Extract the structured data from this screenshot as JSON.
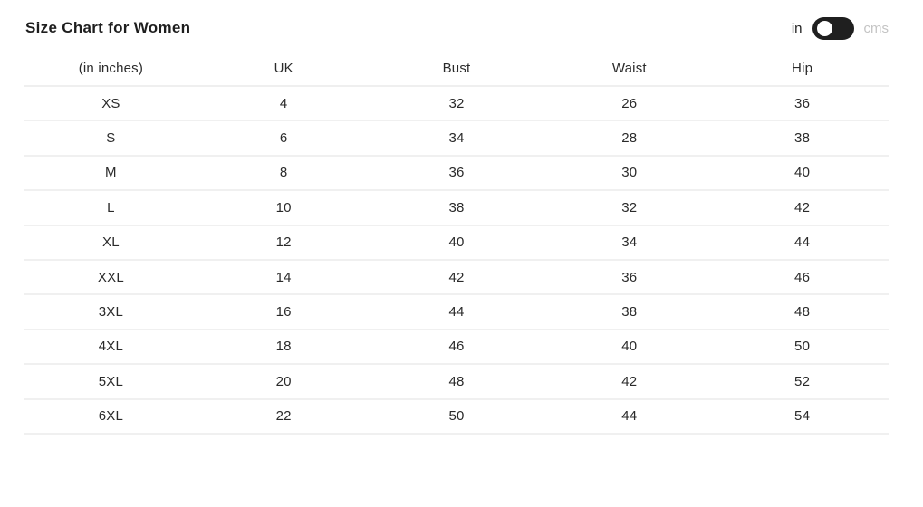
{
  "header": {
    "title": "Size Chart for Women",
    "unit_toggle": {
      "left_label": "in",
      "right_label": "cms",
      "selected_unit": "in"
    }
  },
  "table": {
    "columns": [
      "(in inches)",
      "UK",
      "Bust",
      "Waist",
      "Hip"
    ],
    "rows": [
      [
        "XS",
        "4",
        "32",
        "26",
        "36"
      ],
      [
        "S",
        "6",
        "34",
        "28",
        "38"
      ],
      [
        "M",
        "8",
        "36",
        "30",
        "40"
      ],
      [
        "L",
        "10",
        "38",
        "32",
        "42"
      ],
      [
        "XL",
        "12",
        "40",
        "34",
        "44"
      ],
      [
        "XXL",
        "14",
        "42",
        "36",
        "46"
      ],
      [
        "3XL",
        "16",
        "44",
        "38",
        "48"
      ],
      [
        "4XL",
        "18",
        "46",
        "40",
        "50"
      ],
      [
        "5XL",
        "20",
        "48",
        "42",
        "52"
      ],
      [
        "6XL",
        "22",
        "50",
        "44",
        "54"
      ]
    ]
  },
  "colors": {
    "text": "#262626",
    "title_text": "#1e1e1e",
    "inactive_label": "#c4c4c4",
    "divider": "#efefef",
    "toggle_background": "#1f1f1f",
    "toggle_knob": "#ffffff",
    "page_background": "#ffffff"
  }
}
